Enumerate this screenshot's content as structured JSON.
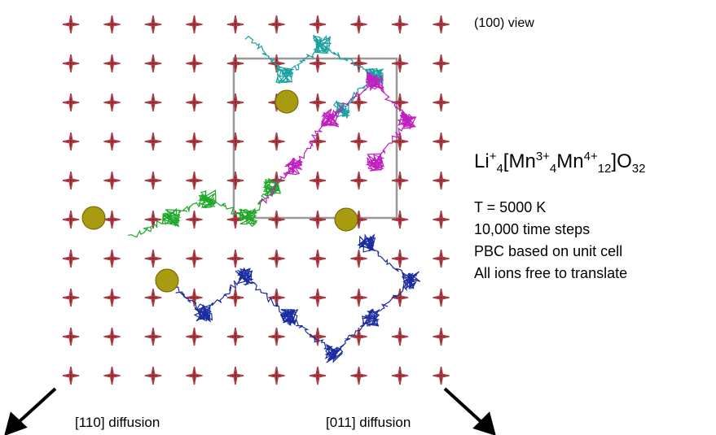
{
  "view_label": "(100) view",
  "formula": {
    "parts": [
      "Li",
      "+",
      "4",
      "[Mn",
      "3+",
      "4",
      "Mn",
      "4+",
      "12",
      "]O",
      "32"
    ]
  },
  "conditions": [
    "T = 5000 K",
    "10,000 time steps",
    "PBC based on unit cell",
    "All ions free to translate"
  ],
  "arrows": {
    "left": "[110] diffusion",
    "right": "[011] diffusion"
  }
}
